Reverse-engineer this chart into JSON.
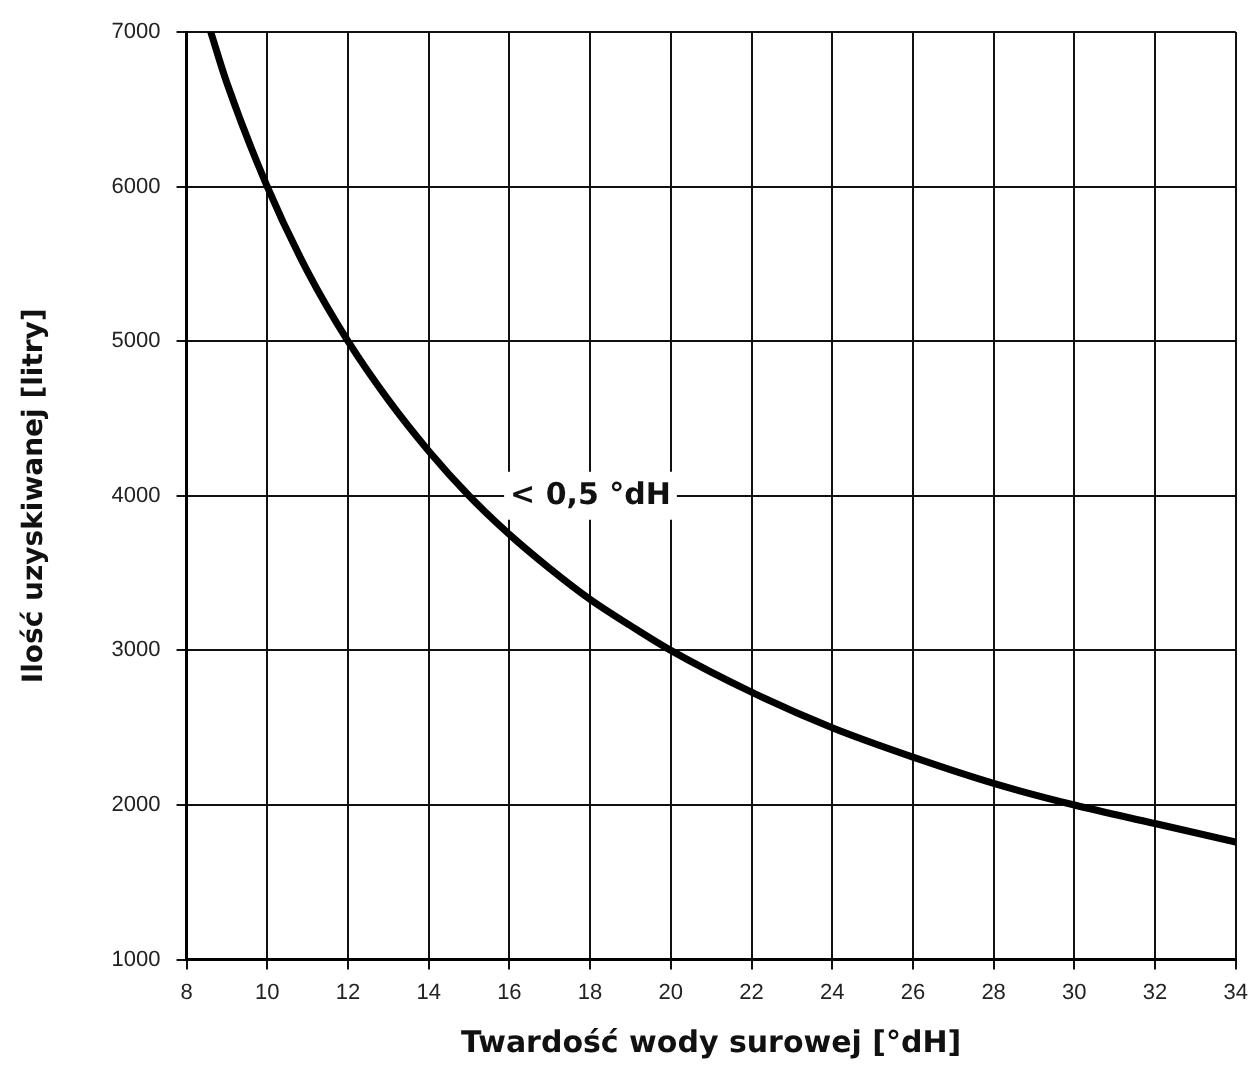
{
  "chart_data": {
    "type": "line",
    "xlabel": "Twardość wody surowej [°dH]",
    "ylabel": "Ilość uzyskiwanej [litry]",
    "x": [
      8.6,
      9,
      10,
      11,
      12,
      13,
      14,
      15,
      16,
      17,
      18,
      19,
      20,
      22,
      24,
      26,
      28,
      30,
      32,
      34
    ],
    "values": [
      7000,
      6670,
      6000,
      5450,
      5000,
      4620,
      4290,
      4000,
      3750,
      3530,
      3330,
      3160,
      3000,
      2730,
      2500,
      2310,
      2140,
      2000,
      1880,
      1760
    ],
    "color": "#000000",
    "line_style": "solid",
    "xlim": [
      8,
      34
    ],
    "ylim": [
      1000,
      7000
    ],
    "xticks": [
      8,
      10,
      12,
      14,
      16,
      18,
      20,
      22,
      24,
      26,
      28,
      30,
      32,
      34
    ],
    "yticks": [
      1000,
      2000,
      3000,
      4000,
      5000,
      6000,
      7000
    ],
    "grid": true,
    "annotations": [
      "< 0,5 °dH"
    ]
  }
}
